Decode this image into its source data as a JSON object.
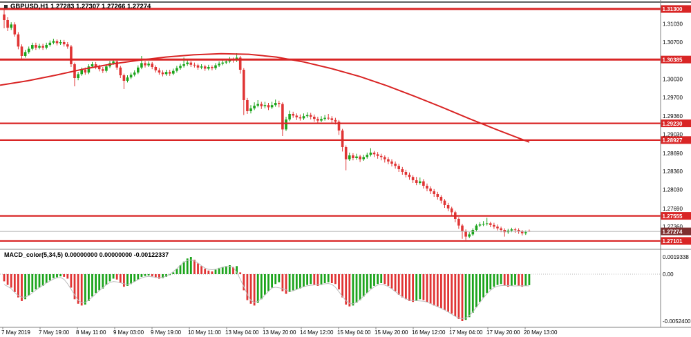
{
  "header": {
    "symbol_title": "GBPUSD,H1 1.27283 1.27307 1.27266 1.27274"
  },
  "indicator": {
    "label": "MACD_color(5,34,5) 0.00000000 0.00000000 -0.00122337"
  },
  "colors": {
    "bull": "#1ca41c",
    "bear": "#e03535",
    "line_red": "#d92525",
    "bid_tag_bg": "#7d2f2f",
    "tag_text": "#ffffff",
    "signal_line": "#bdbdbd",
    "separator": "#808080",
    "axis_text": "#000000",
    "bid_line": "#b0b0b0"
  },
  "chart_data": {
    "type": "candlestick",
    "symbol": "GBPUSD",
    "timeframe": "H1",
    "current_bar": {
      "open": "1.27283",
      "high": "1.27307",
      "low": "1.27266",
      "close": "1.27274"
    },
    "price_axis_labels": [
      "1.31030",
      "1.30700",
      "1.30370",
      "1.30030",
      "1.29700",
      "1.29360",
      "1.29030",
      "1.28690",
      "1.28360",
      "1.28030",
      "1.27690",
      "1.27360"
    ],
    "time_axis_labels": [
      "7 May 2019",
      "7 May 19:00",
      "8 May 11:00",
      "9 May 03:00",
      "9 May 19:00",
      "10 May 11:00",
      "13 May 04:00",
      "13 May 20:00",
      "14 May 12:00",
      "15 May 04:00",
      "15 May 20:00",
      "16 May 12:00",
      "17 May 04:00",
      "17 May 20:00",
      "20 May 13:00"
    ],
    "horizontal_levels": [
      {
        "label": "1.31300",
        "width": 3
      },
      {
        "label": "1.30385",
        "width": 3
      },
      {
        "label": "1.29230",
        "width": 2.2
      },
      {
        "label": "1.28927",
        "width": 2.2
      },
      {
        "label": "1.27555",
        "width": 2.2
      },
      {
        "label": "1.27101",
        "width": 2.2
      }
    ],
    "bid": {
      "label": "1.27274"
    },
    "moving_average": {
      "points": [
        [
          0,
          1.2992
        ],
        [
          40,
          1.3
        ],
        [
          80,
          1.301
        ],
        [
          120,
          1.3021
        ],
        [
          160,
          1.303
        ],
        [
          200,
          1.3037
        ],
        [
          240,
          1.3043
        ],
        [
          280,
          1.3047
        ],
        [
          320,
          1.3049
        ],
        [
          360,
          1.3048
        ],
        [
          400,
          1.3043
        ],
        [
          440,
          1.3034
        ],
        [
          480,
          1.3022
        ],
        [
          520,
          1.3008
        ],
        [
          560,
          1.2991
        ],
        [
          600,
          1.2972
        ],
        [
          640,
          1.2952
        ],
        [
          680,
          1.2931
        ],
        [
          720,
          1.2911
        ],
        [
          766,
          1.2889
        ]
      ]
    },
    "candles_ohlc": [
      [
        1.312,
        1.3132,
        1.3095,
        1.311
      ],
      [
        1.311,
        1.3115,
        1.309,
        1.3096
      ],
      [
        1.3096,
        1.3106,
        1.3092,
        1.3102
      ],
      [
        1.3102,
        1.3106,
        1.308,
        1.3084
      ],
      [
        1.3084,
        1.3088,
        1.3057,
        1.3062
      ],
      [
        1.3062,
        1.3066,
        1.304,
        1.3045
      ],
      [
        1.3045,
        1.3056,
        1.3042,
        1.3052
      ],
      [
        1.3052,
        1.3062,
        1.3049,
        1.3058
      ],
      [
        1.3058,
        1.3069,
        1.3055,
        1.3065
      ],
      [
        1.3065,
        1.3069,
        1.3056,
        1.306
      ],
      [
        1.306,
        1.3067,
        1.3057,
        1.3063
      ],
      [
        1.3063,
        1.3067,
        1.3056,
        1.306
      ],
      [
        1.306,
        1.3069,
        1.3057,
        1.3065
      ],
      [
        1.3065,
        1.3073,
        1.3062,
        1.3069
      ],
      [
        1.3069,
        1.3076,
        1.3066,
        1.3072
      ],
      [
        1.3072,
        1.3075,
        1.3064,
        1.3068
      ],
      [
        1.3068,
        1.3074,
        1.3065,
        1.307
      ],
      [
        1.307,
        1.3074,
        1.3062,
        1.3066
      ],
      [
        1.3066,
        1.307,
        1.3058,
        1.3062
      ],
      [
        1.3062,
        1.3065,
        1.3025,
        1.303
      ],
      [
        1.303,
        1.3033,
        1.299,
        1.3005
      ],
      [
        1.3005,
        1.3016,
        1.3001,
        1.3012
      ],
      [
        1.3012,
        1.3024,
        1.3009,
        1.302
      ],
      [
        1.302,
        1.3024,
        1.3011,
        1.3015
      ],
      [
        1.3015,
        1.303,
        1.3012,
        1.3026
      ],
      [
        1.3026,
        1.3034,
        1.3023,
        1.303
      ],
      [
        1.303,
        1.3034,
        1.3021,
        1.3025
      ],
      [
        1.3025,
        1.3029,
        1.3017,
        1.3021
      ],
      [
        1.3021,
        1.3025,
        1.3014,
        1.3018
      ],
      [
        1.3018,
        1.303,
        1.3015,
        1.3026
      ],
      [
        1.3026,
        1.3036,
        1.3023,
        1.3032
      ],
      [
        1.3032,
        1.3039,
        1.3029,
        1.3035
      ],
      [
        1.3035,
        1.3038,
        1.302,
        1.3024
      ],
      [
        1.3024,
        1.3027,
        1.3005,
        1.301
      ],
      [
        1.301,
        1.3013,
        1.2985,
        1.3
      ],
      [
        1.3,
        1.301,
        1.2997,
        1.3006
      ],
      [
        1.3006,
        1.3015,
        1.3003,
        1.3011
      ],
      [
        1.3011,
        1.3019,
        1.3008,
        1.3015
      ],
      [
        1.3015,
        1.3028,
        1.3012,
        1.3024
      ],
      [
        1.3024,
        1.3045,
        1.3021,
        1.3032
      ],
      [
        1.3032,
        1.3036,
        1.3024,
        1.3028
      ],
      [
        1.3028,
        1.3035,
        1.3025,
        1.3031
      ],
      [
        1.3031,
        1.3034,
        1.3021,
        1.3025
      ],
      [
        1.3025,
        1.3028,
        1.3015,
        1.3019
      ],
      [
        1.3019,
        1.3023,
        1.3011,
        1.3015
      ],
      [
        1.3015,
        1.3019,
        1.3008,
        1.3012
      ],
      [
        1.3012,
        1.302,
        1.3009,
        1.3016
      ],
      [
        1.3016,
        1.302,
        1.3009,
        1.3013
      ],
      [
        1.3013,
        1.3022,
        1.301,
        1.3018
      ],
      [
        1.3018,
        1.3027,
        1.3015,
        1.3023
      ],
      [
        1.3023,
        1.3031,
        1.302,
        1.3027
      ],
      [
        1.3027,
        1.3042,
        1.3024,
        1.303
      ],
      [
        1.303,
        1.3037,
        1.3027,
        1.3033
      ],
      [
        1.3033,
        1.3036,
        1.3025,
        1.3029
      ],
      [
        1.3029,
        1.3033,
        1.3024,
        1.3028
      ],
      [
        1.3028,
        1.3031,
        1.302,
        1.3024
      ],
      [
        1.3024,
        1.303,
        1.3021,
        1.3026
      ],
      [
        1.3026,
        1.3029,
        1.3018,
        1.3022
      ],
      [
        1.3022,
        1.3029,
        1.3019,
        1.3025
      ],
      [
        1.3025,
        1.3028,
        1.3019,
        1.3023
      ],
      [
        1.3023,
        1.3032,
        1.302,
        1.3028
      ],
      [
        1.3028,
        1.3035,
        1.3025,
        1.3031
      ],
      [
        1.3031,
        1.3037,
        1.3028,
        1.3033
      ],
      [
        1.3033,
        1.3039,
        1.303,
        1.3035
      ],
      [
        1.3035,
        1.3043,
        1.3032,
        1.3039
      ],
      [
        1.3039,
        1.3042,
        1.3033,
        1.3037
      ],
      [
        1.3037,
        1.305,
        1.3034,
        1.3042
      ],
      [
        1.3042,
        1.3045,
        1.3013,
        1.302
      ],
      [
        1.302,
        1.3023,
        1.2938,
        1.2965
      ],
      [
        1.2965,
        1.2969,
        1.294,
        1.2945
      ],
      [
        1.2945,
        1.2956,
        1.2941,
        1.295
      ],
      [
        1.295,
        1.2961,
        1.2947,
        1.2955
      ],
      [
        1.2955,
        1.2965,
        1.2952,
        1.2958
      ],
      [
        1.2958,
        1.2962,
        1.2949,
        1.2954
      ],
      [
        1.2954,
        1.2962,
        1.295,
        1.2956
      ],
      [
        1.2956,
        1.296,
        1.2947,
        1.2952
      ],
      [
        1.2952,
        1.2962,
        1.2949,
        1.2956
      ],
      [
        1.2956,
        1.2966,
        1.2953,
        1.296
      ],
      [
        1.296,
        1.2964,
        1.2952,
        1.2958
      ],
      [
        1.2958,
        1.2961,
        1.29,
        1.2912
      ],
      [
        1.2912,
        1.2935,
        1.2909,
        1.293
      ],
      [
        1.293,
        1.2946,
        1.2927,
        1.294
      ],
      [
        1.294,
        1.2944,
        1.2933,
        1.2937
      ],
      [
        1.2937,
        1.2941,
        1.2929,
        1.2934
      ],
      [
        1.2934,
        1.2939,
        1.2928,
        1.2932
      ],
      [
        1.2932,
        1.2941,
        1.2929,
        1.2936
      ],
      [
        1.2936,
        1.2943,
        1.2933,
        1.2938
      ],
      [
        1.2938,
        1.2942,
        1.293,
        1.2935
      ],
      [
        1.2935,
        1.2939,
        1.2926,
        1.2931
      ],
      [
        1.2931,
        1.2935,
        1.2923,
        1.2928
      ],
      [
        1.2928,
        1.2936,
        1.2925,
        1.2931
      ],
      [
        1.2931,
        1.2938,
        1.2928,
        1.2933
      ],
      [
        1.2933,
        1.294,
        1.2929,
        1.2932
      ],
      [
        1.2932,
        1.2936,
        1.2924,
        1.2929
      ],
      [
        1.2929,
        1.2933,
        1.2921,
        1.2926
      ],
      [
        1.2926,
        1.2929,
        1.2902,
        1.291
      ],
      [
        1.291,
        1.2913,
        1.2872,
        1.288
      ],
      [
        1.288,
        1.2883,
        1.2838,
        1.2858
      ],
      [
        1.2858,
        1.287,
        1.2855,
        1.2865
      ],
      [
        1.2865,
        1.2869,
        1.2856,
        1.286
      ],
      [
        1.286,
        1.2868,
        1.2857,
        1.2863
      ],
      [
        1.2863,
        1.2866,
        1.2853,
        1.2858
      ],
      [
        1.2858,
        1.2866,
        1.2855,
        1.2862
      ],
      [
        1.2862,
        1.287,
        1.2859,
        1.2866
      ],
      [
        1.2866,
        1.2878,
        1.2863,
        1.287
      ],
      [
        1.287,
        1.2873,
        1.2862,
        1.2867
      ],
      [
        1.2867,
        1.2871,
        1.2859,
        1.2864
      ],
      [
        1.2864,
        1.2868,
        1.2856,
        1.2862
      ],
      [
        1.2862,
        1.2865,
        1.2852,
        1.2858
      ],
      [
        1.2858,
        1.2862,
        1.2849,
        1.2854
      ],
      [
        1.2854,
        1.2858,
        1.2845,
        1.285
      ],
      [
        1.285,
        1.2854,
        1.2841,
        1.2846
      ],
      [
        1.2846,
        1.285,
        1.2835,
        1.284
      ],
      [
        1.284,
        1.2844,
        1.283,
        1.2835
      ],
      [
        1.2835,
        1.2839,
        1.2825,
        1.283
      ],
      [
        1.283,
        1.2834,
        1.2821,
        1.2826
      ],
      [
        1.2826,
        1.2829,
        1.2815,
        1.282
      ],
      [
        1.282,
        1.2826,
        1.2811,
        1.2815
      ],
      [
        1.2815,
        1.2825,
        1.2812,
        1.2818
      ],
      [
        1.2818,
        1.2822,
        1.2805,
        1.281
      ],
      [
        1.281,
        1.2814,
        1.28,
        1.2805
      ],
      [
        1.2805,
        1.2809,
        1.2795,
        1.28
      ],
      [
        1.28,
        1.2804,
        1.279,
        1.2795
      ],
      [
        1.2795,
        1.2799,
        1.2785,
        1.279
      ],
      [
        1.279,
        1.2793,
        1.2778,
        1.2783
      ],
      [
        1.2783,
        1.2786,
        1.277,
        1.2775
      ],
      [
        1.2775,
        1.2779,
        1.2764,
        1.2769
      ],
      [
        1.2769,
        1.2772,
        1.2756,
        1.2762
      ],
      [
        1.2762,
        1.2765,
        1.2744,
        1.275
      ],
      [
        1.275,
        1.2753,
        1.2732,
        1.2738
      ],
      [
        1.2738,
        1.2741,
        1.2714,
        1.2728
      ],
      [
        1.2728,
        1.2731,
        1.2712,
        1.2718
      ],
      [
        1.2718,
        1.2726,
        1.2715,
        1.2722
      ],
      [
        1.2722,
        1.2733,
        1.2719,
        1.273
      ],
      [
        1.273,
        1.2741,
        1.2727,
        1.2738
      ],
      [
        1.2738,
        1.2744,
        1.2735,
        1.274
      ],
      [
        1.274,
        1.2746,
        1.2737,
        1.2741
      ],
      [
        1.2741,
        1.2752,
        1.2738,
        1.2742
      ],
      [
        1.2742,
        1.2745,
        1.2735,
        1.2739
      ],
      [
        1.2739,
        1.2743,
        1.2732,
        1.2736
      ],
      [
        1.2736,
        1.274,
        1.2729,
        1.2733
      ],
      [
        1.2733,
        1.2736,
        1.2726,
        1.273
      ],
      [
        1.273,
        1.2733,
        1.2718,
        1.2726
      ],
      [
        1.2726,
        1.2732,
        1.2723,
        1.2729
      ],
      [
        1.2729,
        1.2734,
        1.2726,
        1.2731
      ],
      [
        1.2731,
        1.2734,
        1.2725,
        1.273
      ],
      [
        1.273,
        1.2733,
        1.2723,
        1.2727
      ],
      [
        1.2727,
        1.273,
        1.272,
        1.2724
      ],
      [
        1.2724,
        1.2729,
        1.2721,
        1.2726
      ],
      [
        1.27283,
        1.27307,
        1.27266,
        1.27274
      ]
    ],
    "macd": {
      "name": "MACD_color(5,34,5)",
      "scale": 0.001,
      "values": [
        -0.8,
        -1.2,
        -1.5,
        -2.0,
        -2.6,
        -3.0,
        -2.8,
        -2.4,
        -2.0,
        -1.7,
        -1.5,
        -1.3,
        -1.0,
        -0.7,
        -0.45,
        -0.35,
        -0.25,
        -0.3,
        -0.5,
        -1.5,
        -2.8,
        -3.3,
        -3.5,
        -3.4,
        -3.0,
        -2.5,
        -2.1,
        -1.8,
        -1.6,
        -1.2,
        -0.8,
        -0.5,
        -0.6,
        -1.0,
        -1.4,
        -1.3,
        -1.1,
        -0.85,
        -0.6,
        -0.3,
        -0.2,
        -0.15,
        -0.25,
        -0.4,
        -0.5,
        -0.45,
        -0.3,
        -0.1,
        0.2,
        0.6,
        1.0,
        1.4,
        1.75,
        1.93,
        1.6,
        1.2,
        0.9,
        0.6,
        0.4,
        0.3,
        0.5,
        0.7,
        0.8,
        0.9,
        1.0,
        0.8,
        0.9,
        0.2,
        -1.8,
        -2.9,
        -3.3,
        -3.5,
        -3.2,
        -2.8,
        -2.3,
        -1.9,
        -1.5,
        -1.1,
        -0.9,
        -1.9,
        -2.2,
        -2.0,
        -1.8,
        -1.7,
        -1.6,
        -1.4,
        -1.2,
        -1.1,
        -1.2,
        -1.3,
        -1.2,
        -1.0,
        -0.9,
        -1.0,
        -1.1,
        -1.7,
        -2.6,
        -3.4,
        -3.6,
        -3.5,
        -3.2,
        -2.9,
        -2.5,
        -2.1,
        -1.6,
        -1.3,
        -1.1,
        -1.0,
        -1.1,
        -1.3,
        -1.6,
        -1.9,
        -2.3,
        -2.6,
        -2.8,
        -3.0,
        -3.1,
        -3.0,
        -2.8,
        -2.9,
        -3.1,
        -3.3,
        -3.5,
        -3.6,
        -3.8,
        -4.0,
        -4.2,
        -4.4,
        -4.7,
        -5.0,
        -5.24,
        -5.1,
        -4.8,
        -4.3,
        -3.7,
        -3.1,
        -2.6,
        -2.1,
        -1.7,
        -1.4,
        -1.2,
        -1.1,
        -1.3,
        -1.4,
        -1.3,
        -1.2,
        -1.3,
        -1.4,
        -1.3,
        -1.22337
      ],
      "axis_labels": [
        {
          "label": "0.0019338",
          "value": 0.0019338
        },
        {
          "label": "0.00",
          "value": 0
        },
        {
          "label": "-0.0052400",
          "value": -0.00524
        }
      ]
    }
  }
}
